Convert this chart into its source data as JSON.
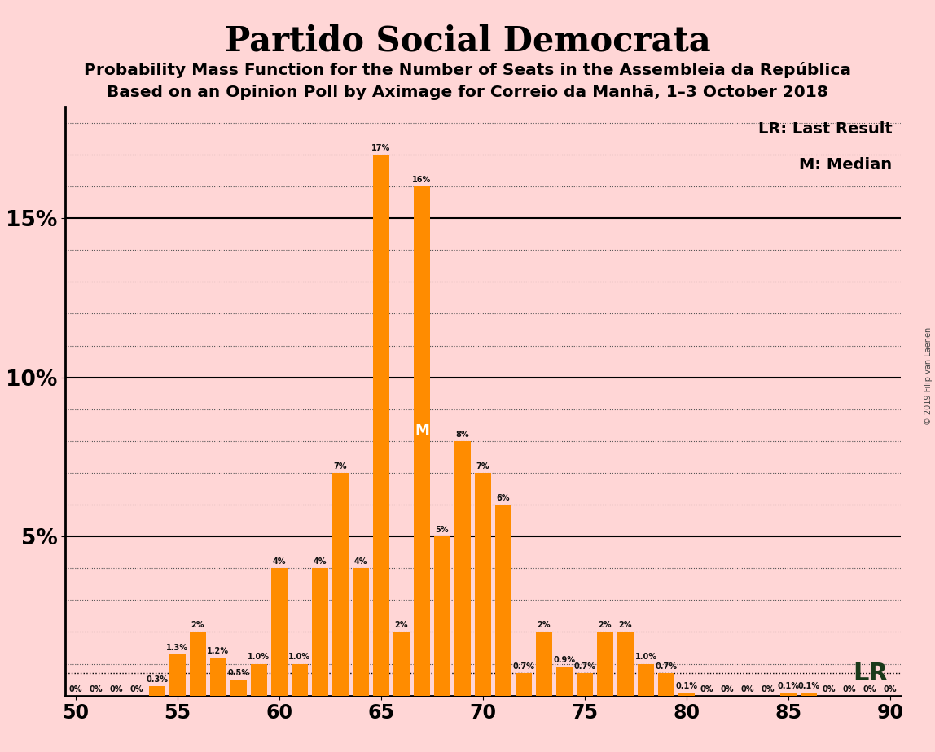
{
  "title": "Partido Social Democrata",
  "subtitle1": "Probability Mass Function for the Number of Seats in the Assembleia da República",
  "subtitle2": "Based on an Opinion Poll by Aximage for Correio da Manhã, 1–3 October 2018",
  "copyright": "© 2019 Filip van Laenen",
  "background_color": "#FFD6D6",
  "bar_color": "#FF8C00",
  "xlim": [
    49.5,
    90.5
  ],
  "ylim": [
    0,
    0.185
  ],
  "yticks": [
    0.05,
    0.1,
    0.15
  ],
  "ytick_labels": [
    "5%",
    "10%",
    "15%"
  ],
  "xlabel_ticks": [
    50,
    55,
    60,
    65,
    70,
    75,
    80,
    85,
    90
  ],
  "lr_seat": 79,
  "lr_prob": 0.007,
  "median_seat": 67,
  "legend_lr": "LR: Last Result",
  "legend_m": "M: Median",
  "seats": [
    50,
    51,
    52,
    53,
    54,
    55,
    56,
    57,
    58,
    59,
    60,
    61,
    62,
    63,
    64,
    65,
    66,
    67,
    68,
    69,
    70,
    71,
    72,
    73,
    74,
    75,
    76,
    77,
    78,
    79,
    80,
    81,
    82,
    83,
    84,
    85,
    86,
    87,
    88,
    89,
    90
  ],
  "probs": [
    0.0,
    0.0,
    0.0,
    0.0,
    0.003,
    0.013,
    0.02,
    0.012,
    0.005,
    0.01,
    0.04,
    0.01,
    0.04,
    0.07,
    0.04,
    0.17,
    0.02,
    0.16,
    0.05,
    0.08,
    0.07,
    0.06,
    0.007,
    0.02,
    0.009,
    0.007,
    0.02,
    0.02,
    0.01,
    0.007,
    0.001,
    0.0,
    0.0,
    0.0,
    0.0,
    0.001,
    0.001,
    0.0,
    0.0,
    0.0,
    0.0
  ],
  "bar_labels": [
    "0%",
    "0%",
    "0%",
    "0%",
    "0.3%",
    "1.3%",
    "2%",
    "1.2%",
    "0.5%",
    "1.0%",
    "4%",
    "1.0%",
    "4%",
    "7%",
    "4%",
    "17%",
    "2%",
    "16%",
    "5%",
    "8%",
    "7%",
    "6%",
    "0.7%",
    "2%",
    "0.9%",
    "0.7%",
    "2%",
    "2%",
    "1.0%",
    "0.7%",
    "0.1%",
    "0%",
    "0%",
    "0%",
    "0%",
    "0.1%",
    "0.1%",
    "0%",
    "0%",
    "0%",
    "0%"
  ]
}
